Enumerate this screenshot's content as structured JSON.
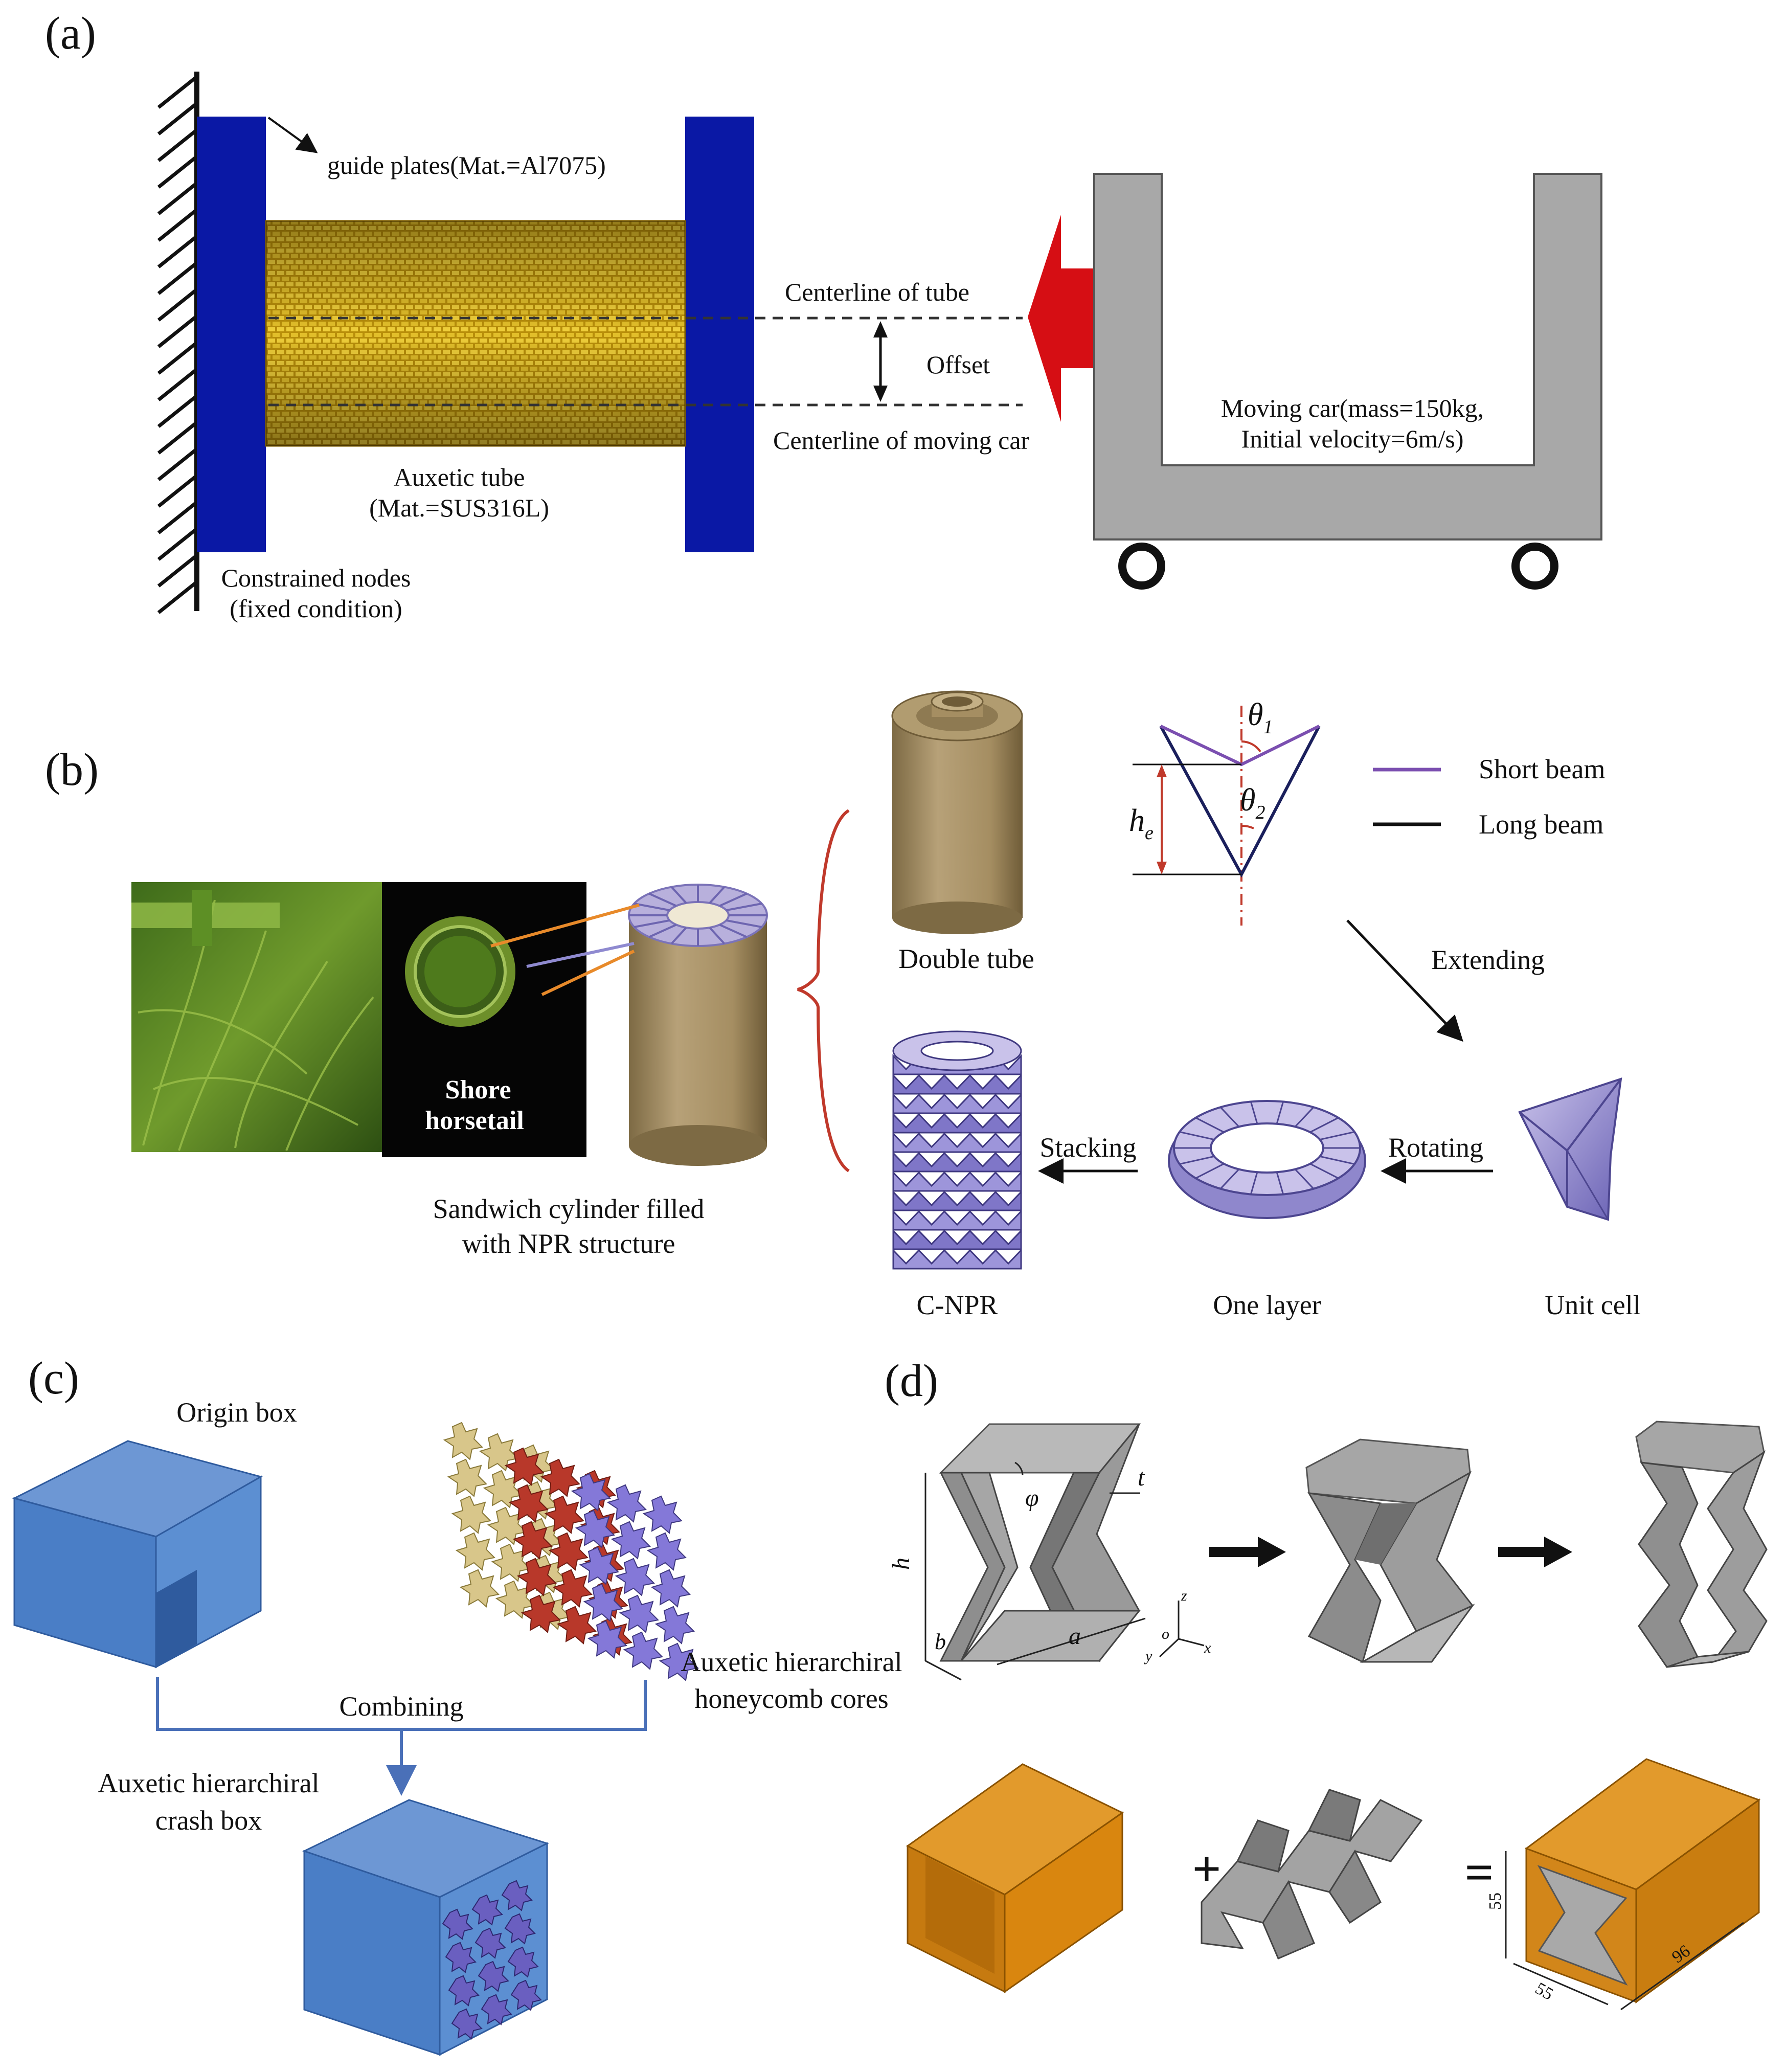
{
  "panel_a": {
    "label": "(a)",
    "guide_plates": "guide plates(Mat.=Al7075)",
    "centerline_tube": "Centerline of tube",
    "offset": "Offset",
    "centerline_car": "Centerline of moving car",
    "tube_line1": "Auxetic tube",
    "tube_line2": "(Mat.=SUS316L)",
    "constrained_line1": "Constrained nodes",
    "constrained_line2": "(fixed condition)",
    "car_line1": "Moving car(mass=150kg,",
    "car_line2": "Initial velocity=6m/s)"
  },
  "panel_b": {
    "label": "(b)",
    "shore_line1": "Shore",
    "shore_line2": "horsetail",
    "sandwich_line1": "Sandwich  cylinder  filled",
    "sandwich_line2": "with NPR structure",
    "double_tube": "Double tube",
    "theta1_sym": "θ",
    "theta1_sub": "1",
    "theta2_sym": "θ",
    "theta2_sub": "2",
    "he_sym": "h",
    "he_sub": "e",
    "legend_short": "Short beam",
    "legend_long": "Long beam",
    "extending": "Extending",
    "stacking": "Stacking",
    "rotating": "Rotating",
    "cnpr": "C-NPR",
    "one_layer": "One layer",
    "unit_cell": "Unit cell",
    "colors": {
      "short_beam": "#7b4fb0",
      "long_beam": "#1a1f5c",
      "brace": "#c0392b"
    }
  },
  "panel_c": {
    "label": "(c)",
    "origin_box": "Origin box",
    "cores_line1": "Auxetic  hierarchiral",
    "cores_line2": "honeycomb  cores",
    "combining": "Combining",
    "crash_line1": "Auxetic  hierarchiral",
    "crash_line2": "crash  box",
    "colors": {
      "box": "#4a7ec6",
      "core_tan": "#d8c68a",
      "core_red": "#b8382a",
      "core_purple": "#8478d8"
    }
  },
  "panel_d": {
    "label": "(d)",
    "dim_t": "t",
    "dim_phi": "φ",
    "dim_h": "h",
    "dim_a": "a",
    "dim_b": "b",
    "axis_z": "z",
    "axis_o": "o",
    "axis_x": "x",
    "axis_y": "y",
    "plus": "+",
    "equals": "=",
    "dim_55a": "55",
    "dim_55b": "55",
    "dim_96": "96",
    "colors": {
      "orange": "#d9860f",
      "gray": "#9a9a9a"
    }
  }
}
